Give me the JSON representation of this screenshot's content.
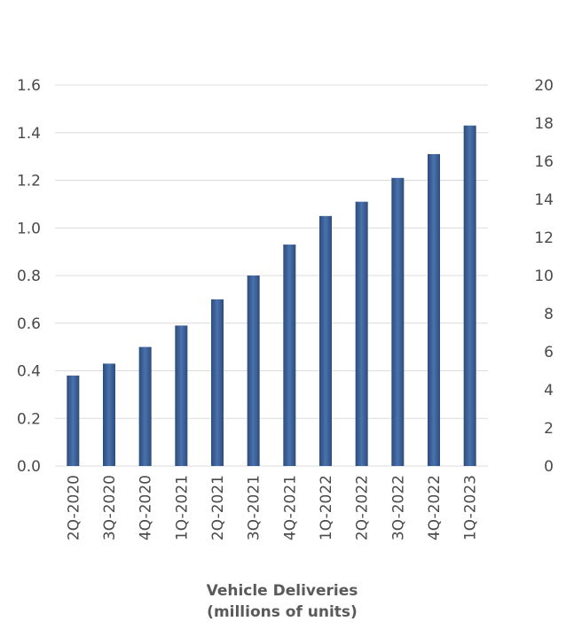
{
  "chart_data": {
    "type": "bar",
    "categories": [
      "2Q-2020",
      "3Q-2020",
      "4Q-2020",
      "1Q-2021",
      "2Q-2021",
      "3Q-2021",
      "4Q-2021",
      "1Q-2022",
      "2Q-2022",
      "3Q-2022",
      "4Q-2022",
      "1Q-2023"
    ],
    "values": [
      0.38,
      0.43,
      0.5,
      0.59,
      0.7,
      0.8,
      0.93,
      1.05,
      1.11,
      1.21,
      1.31,
      1.43
    ],
    "title": "",
    "xlabel": [
      "Vehicle Deliveries",
      "(millions of units)"
    ],
    "ylabel": "",
    "ylim": [
      0,
      1.6
    ],
    "yticks": [
      "0.0",
      "0.2",
      "0.4",
      "0.6",
      "0.8",
      "1.0",
      "1.2",
      "1.4",
      "1.6"
    ],
    "y2lim": [
      0,
      20
    ],
    "y2ticks": [
      "0",
      "2",
      "4",
      "6",
      "8",
      "10",
      "12",
      "14",
      "16",
      "18",
      "20"
    ],
    "grid": true,
    "bar_color": "#3a5f95",
    "bar_color_light": "#4a72ad",
    "bar_color_dark": "#2c4c7c"
  }
}
